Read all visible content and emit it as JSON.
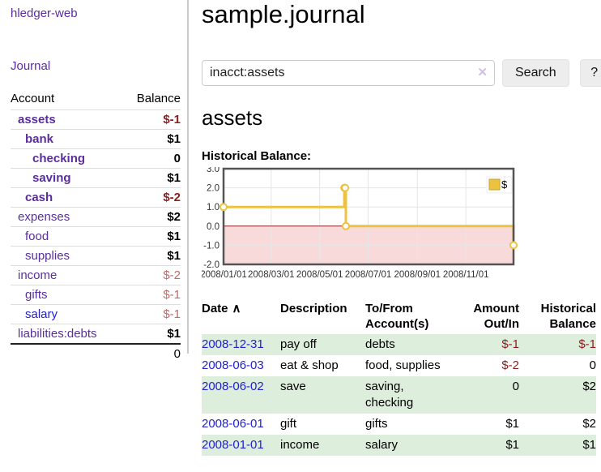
{
  "sidebar": {
    "app_title": "hledger-web",
    "journal_link": "Journal",
    "accounts_table": {
      "account_header": "Account",
      "balance_header": "Balance",
      "rows": [
        {
          "account": "assets",
          "balance": "$-1",
          "depth": 1,
          "account_bold": true,
          "account_color": "purple",
          "balance_bold": true,
          "balance_color": "neg-strong"
        },
        {
          "account": "bank",
          "balance": "$1",
          "depth": 2,
          "account_bold": true,
          "account_color": "purple",
          "balance_bold": true,
          "balance_color": "normal"
        },
        {
          "account": "checking",
          "balance": "0",
          "depth": 3,
          "account_bold": true,
          "account_color": "purple",
          "balance_bold": true,
          "balance_color": "normal"
        },
        {
          "account": "saving",
          "balance": "$1",
          "depth": 3,
          "account_bold": true,
          "account_color": "purple",
          "balance_bold": true,
          "balance_color": "normal"
        },
        {
          "account": "cash",
          "balance": "$-2",
          "depth": 2,
          "account_bold": true,
          "account_color": "purple",
          "balance_bold": true,
          "balance_color": "neg-strong"
        },
        {
          "account": "expenses",
          "balance": "$2",
          "depth": 1,
          "account_bold": false,
          "account_color": "purple",
          "balance_bold": true,
          "balance_color": "normal"
        },
        {
          "account": "food",
          "balance": "$1",
          "depth": 2,
          "account_bold": false,
          "account_color": "purple",
          "balance_bold": true,
          "balance_color": "normal"
        },
        {
          "account": "supplies",
          "balance": "$1",
          "depth": 2,
          "account_bold": false,
          "account_color": "purple",
          "balance_bold": true,
          "balance_color": "normal"
        },
        {
          "account": "income",
          "balance": "$-2",
          "depth": 1,
          "account_bold": false,
          "account_color": "purple",
          "balance_bold": false,
          "balance_color": "neg-soft"
        },
        {
          "account": "gifts",
          "balance": "$-1",
          "depth": 2,
          "account_bold": false,
          "account_color": "purple",
          "balance_bold": false,
          "balance_color": "neg-soft"
        },
        {
          "account": "salary",
          "balance": "$-1",
          "depth": 2,
          "account_bold": false,
          "account_color": "blue",
          "balance_bold": false,
          "balance_color": "neg-soft"
        },
        {
          "account": "liabilities:debts",
          "balance": "$1",
          "depth": 1,
          "account_bold": false,
          "account_color": "purple",
          "balance_bold": true,
          "balance_color": "normal"
        }
      ],
      "total": "0"
    }
  },
  "main": {
    "title": "sample.journal",
    "search": {
      "value": "inacct:assets",
      "clear_icon": "✕",
      "button_label": "Search",
      "help_label": "?"
    },
    "account_heading": "assets",
    "chart_label": "Historical Balance:"
  },
  "chart_data": {
    "type": "line",
    "mode": "steps",
    "title": "Historical Balance",
    "x_range": [
      "2008-01-01",
      "2008-12-31"
    ],
    "ylim": [
      -2,
      3
    ],
    "yticks": [
      3.0,
      2.0,
      1.0,
      0.0,
      -1.0,
      -2.0
    ],
    "xticks": [
      "2008/01/01",
      "2008/03/01",
      "2008/05/01",
      "2008/07/01",
      "2008/09/01",
      "2008/11/01"
    ],
    "legend_position": "top-right",
    "grid": true,
    "series": [
      {
        "name": "$",
        "color": "#edc240",
        "points": [
          [
            "2008-01-01",
            1
          ],
          [
            "2008-06-01",
            2
          ],
          [
            "2008-06-02",
            2
          ],
          [
            "2008-06-03",
            0
          ],
          [
            "2008-12-31",
            -1
          ]
        ]
      }
    ],
    "colors": {
      "negative_fill": "#f9dada",
      "zero_line": "#8b1f1f",
      "gridline": "#e6e6e6",
      "plot_border": "#545454",
      "legend_swatch_border": "#c7a32e"
    }
  },
  "register": {
    "headers": [
      "Date",
      "Description",
      "To/From Account(s)",
      "Amount Out/In",
      "Historical Balance"
    ],
    "sort_icon": "∧",
    "rows": [
      {
        "date": "2008-12-31",
        "description": "pay off",
        "accounts": "debts",
        "amount": "$-1",
        "balance": "$-1",
        "amount_color": "neg-strong",
        "balance_color": "neg-strong",
        "green": true
      },
      {
        "date": "2008-06-03",
        "description": "eat & shop",
        "accounts": "food, supplies",
        "amount": "$-2",
        "balance": "0",
        "amount_color": "neg-strong",
        "balance_color": "normal",
        "green": false
      },
      {
        "date": "2008-06-02",
        "description": "save",
        "accounts": "saving, checking",
        "amount": "0",
        "balance": "$2",
        "amount_color": "normal",
        "balance_color": "normal",
        "green": true
      },
      {
        "date": "2008-06-01",
        "description": "gift",
        "accounts": "gifts",
        "amount": "$1",
        "balance": "$2",
        "amount_color": "normal",
        "balance_color": "normal",
        "green": false
      },
      {
        "date": "2008-01-01",
        "description": "income",
        "accounts": "salary",
        "amount": "$1",
        "balance": "$1",
        "amount_color": "normal",
        "balance_color": "normal",
        "green": true
      }
    ]
  }
}
